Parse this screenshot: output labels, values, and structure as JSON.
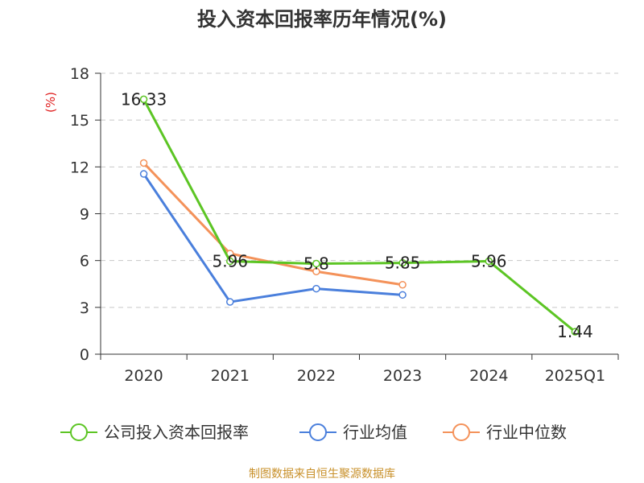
{
  "title": "投入资本回报率历年情况(%)",
  "source": "制图数据来自恒生聚源数据库",
  "chart_data": {
    "type": "line",
    "title": "投入资本回报率历年情况(%)",
    "ylabel": "(%)",
    "xlabel": "",
    "categories": [
      "2020",
      "2021",
      "2022",
      "2023",
      "2024",
      "2025Q1"
    ],
    "ylim": [
      0,
      18
    ],
    "yticks": [
      0,
      3,
      6,
      9,
      12,
      15,
      18
    ],
    "grid": true,
    "legend_position": "bottom",
    "series": [
      {
        "name": "公司投入资本回报率",
        "color": "#5cc524",
        "values": [
          16.33,
          5.96,
          5.8,
          5.85,
          5.96,
          1.44
        ],
        "labels": true
      },
      {
        "name": "行业均值",
        "color": "#4a7fdc",
        "values": [
          11.55,
          3.35,
          4.2,
          3.8,
          null,
          null
        ],
        "labels": false
      },
      {
        "name": "行业中位数",
        "color": "#f4925a",
        "values": [
          12.25,
          6.45,
          5.3,
          4.45,
          null,
          null
        ],
        "labels": false
      }
    ]
  }
}
